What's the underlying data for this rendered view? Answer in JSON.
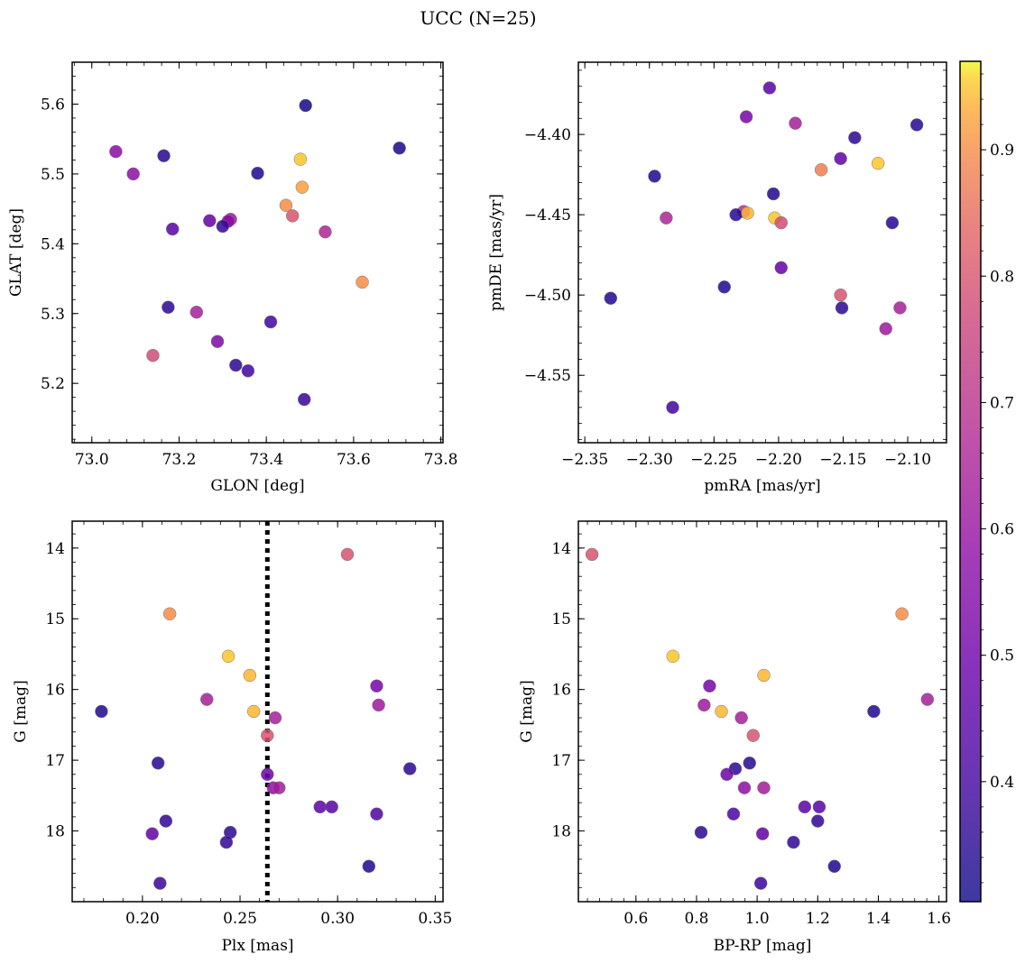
{
  "title": "UCC (N=25)",
  "colorbar": {
    "range": [
      0.305,
      0.97
    ],
    "ticks": [
      0.4,
      0.5,
      0.6,
      0.7,
      0.8,
      0.9
    ],
    "tick_labels": [
      "0.4",
      "0.5",
      "0.6",
      "0.7",
      "0.8",
      "0.9"
    ],
    "colormap": "plasma"
  },
  "chart_data": [
    {
      "type": "scatter",
      "xlabel": "GLON [deg]",
      "ylabel": "GLAT [deg]",
      "xlim": [
        72.955,
        73.805
      ],
      "ylim": [
        5.115,
        5.66
      ],
      "xticks": [
        73.0,
        73.2,
        73.4,
        73.6,
        73.8
      ],
      "xtick_labels": [
        "73.0",
        "73.2",
        "73.4",
        "73.6",
        "73.8"
      ],
      "yticks": [
        5.2,
        5.3,
        5.4,
        5.5,
        5.6
      ],
      "ytick_labels": [
        "5.2",
        "5.3",
        "5.4",
        "5.5",
        "5.6"
      ],
      "invert_y": false,
      "points": [
        {
          "x": 73.49,
          "y": 5.598,
          "c": 0.32
        },
        {
          "x": 73.705,
          "y": 5.537,
          "c": 0.33
        },
        {
          "x": 73.055,
          "y": 5.532,
          "c": 0.57
        },
        {
          "x": 73.165,
          "y": 5.526,
          "c": 0.35
        },
        {
          "x": 73.478,
          "y": 5.521,
          "c": 0.95
        },
        {
          "x": 73.38,
          "y": 5.501,
          "c": 0.34
        },
        {
          "x": 73.095,
          "y": 5.5,
          "c": 0.58
        },
        {
          "x": 73.482,
          "y": 5.481,
          "c": 0.92
        },
        {
          "x": 73.445,
          "y": 5.455,
          "c": 0.9
        },
        {
          "x": 73.46,
          "y": 5.44,
          "c": 0.8
        },
        {
          "x": 73.318,
          "y": 5.435,
          "c": 0.62
        },
        {
          "x": 73.312,
          "y": 5.432,
          "c": 0.56
        },
        {
          "x": 73.27,
          "y": 5.433,
          "c": 0.47
        },
        {
          "x": 73.3,
          "y": 5.425,
          "c": 0.37
        },
        {
          "x": 73.185,
          "y": 5.421,
          "c": 0.45
        },
        {
          "x": 73.535,
          "y": 5.417,
          "c": 0.66
        },
        {
          "x": 73.62,
          "y": 5.345,
          "c": 0.9
        },
        {
          "x": 73.175,
          "y": 5.309,
          "c": 0.36
        },
        {
          "x": 73.24,
          "y": 5.302,
          "c": 0.64
        },
        {
          "x": 73.41,
          "y": 5.288,
          "c": 0.4
        },
        {
          "x": 73.288,
          "y": 5.26,
          "c": 0.54
        },
        {
          "x": 73.14,
          "y": 5.24,
          "c": 0.78
        },
        {
          "x": 73.33,
          "y": 5.226,
          "c": 0.36
        },
        {
          "x": 73.358,
          "y": 5.218,
          "c": 0.4
        },
        {
          "x": 73.487,
          "y": 5.177,
          "c": 0.38
        }
      ]
    },
    {
      "type": "scatter",
      "xlabel": "pmRA [mas/yr]",
      "ylabel": "pmDE [mas/yr]",
      "xlim": [
        -2.355,
        -2.07
      ],
      "ylim": [
        -4.592,
        -4.355
      ],
      "xticks": [
        -2.35,
        -2.3,
        -2.25,
        -2.2,
        -2.15,
        -2.1
      ],
      "xtick_labels": [
        "−2.35",
        "−2.30",
        "−2.25",
        "−2.20",
        "−2.15",
        "−2.10"
      ],
      "yticks": [
        -4.4,
        -4.45,
        -4.5,
        -4.55
      ],
      "ytick_labels": [
        "−4.40",
        "−4.45",
        "−4.50",
        "−4.55"
      ],
      "invert_y": false,
      "points": [
        {
          "x": -2.207,
          "y": -4.371,
          "c": 0.45
        },
        {
          "x": -2.225,
          "y": -4.389,
          "c": 0.53
        },
        {
          "x": -2.187,
          "y": -4.393,
          "c": 0.64
        },
        {
          "x": -2.093,
          "y": -4.394,
          "c": 0.35
        },
        {
          "x": -2.141,
          "y": -4.402,
          "c": 0.36
        },
        {
          "x": -2.152,
          "y": -4.415,
          "c": 0.47
        },
        {
          "x": -2.123,
          "y": -4.418,
          "c": 0.95
        },
        {
          "x": -2.167,
          "y": -4.422,
          "c": 0.88
        },
        {
          "x": -2.296,
          "y": -4.426,
          "c": 0.34
        },
        {
          "x": -2.204,
          "y": -4.437,
          "c": 0.34
        },
        {
          "x": -2.227,
          "y": -4.448,
          "c": 0.68
        },
        {
          "x": -2.233,
          "y": -4.45,
          "c": 0.35
        },
        {
          "x": -2.224,
          "y": -4.449,
          "c": 0.94
        },
        {
          "x": -2.287,
          "y": -4.452,
          "c": 0.66
        },
        {
          "x": -2.203,
          "y": -4.452,
          "c": 0.95
        },
        {
          "x": -2.198,
          "y": -4.455,
          "c": 0.78
        },
        {
          "x": -2.112,
          "y": -4.455,
          "c": 0.35
        },
        {
          "x": -2.198,
          "y": -4.483,
          "c": 0.48
        },
        {
          "x": -2.242,
          "y": -4.495,
          "c": 0.34
        },
        {
          "x": -2.152,
          "y": -4.5,
          "c": 0.8
        },
        {
          "x": -2.33,
          "y": -4.502,
          "c": 0.34
        },
        {
          "x": -2.151,
          "y": -4.508,
          "c": 0.36
        },
        {
          "x": -2.106,
          "y": -4.508,
          "c": 0.64
        },
        {
          "x": -2.117,
          "y": -4.521,
          "c": 0.62
        },
        {
          "x": -2.282,
          "y": -4.57,
          "c": 0.4
        }
      ]
    },
    {
      "type": "scatter",
      "xlabel": "Plx [mas]",
      "ylabel": "G [mag]",
      "xlim": [
        0.164,
        0.354
      ],
      "ylim": [
        13.62,
        19.0
      ],
      "xticks": [
        0.2,
        0.25,
        0.3,
        0.35
      ],
      "xtick_labels": [
        "0.20",
        "0.25",
        "0.30",
        "0.35"
      ],
      "yticks": [
        14,
        15,
        16,
        17,
        18
      ],
      "ytick_labels": [
        "14",
        "15",
        "16",
        "17",
        "18"
      ],
      "invert_y": true,
      "vline": 0.264,
      "points": [
        {
          "x": 0.305,
          "y": 14.09,
          "c": 0.8
        },
        {
          "x": 0.214,
          "y": 14.93,
          "c": 0.9
        },
        {
          "x": 0.244,
          "y": 15.53,
          "c": 0.95
        },
        {
          "x": 0.255,
          "y": 15.8,
          "c": 0.94
        },
        {
          "x": 0.32,
          "y": 15.95,
          "c": 0.52
        },
        {
          "x": 0.233,
          "y": 16.14,
          "c": 0.64
        },
        {
          "x": 0.321,
          "y": 16.22,
          "c": 0.62
        },
        {
          "x": 0.257,
          "y": 16.31,
          "c": 0.94
        },
        {
          "x": 0.179,
          "y": 16.31,
          "c": 0.34
        },
        {
          "x": 0.268,
          "y": 16.4,
          "c": 0.64
        },
        {
          "x": 0.264,
          "y": 16.65,
          "c": 0.8
        },
        {
          "x": 0.208,
          "y": 17.04,
          "c": 0.35
        },
        {
          "x": 0.337,
          "y": 17.12,
          "c": 0.36
        },
        {
          "x": 0.264,
          "y": 17.2,
          "c": 0.5
        },
        {
          "x": 0.267,
          "y": 17.39,
          "c": 0.58
        },
        {
          "x": 0.27,
          "y": 17.39,
          "c": 0.63
        },
        {
          "x": 0.291,
          "y": 17.66,
          "c": 0.46
        },
        {
          "x": 0.297,
          "y": 17.66,
          "c": 0.45
        },
        {
          "x": 0.32,
          "y": 17.76,
          "c": 0.43
        },
        {
          "x": 0.212,
          "y": 17.86,
          "c": 0.37
        },
        {
          "x": 0.245,
          "y": 18.02,
          "c": 0.36
        },
        {
          "x": 0.205,
          "y": 18.04,
          "c": 0.47
        },
        {
          "x": 0.243,
          "y": 18.16,
          "c": 0.37
        },
        {
          "x": 0.316,
          "y": 18.5,
          "c": 0.34
        },
        {
          "x": 0.209,
          "y": 18.74,
          "c": 0.39
        }
      ]
    },
    {
      "type": "scatter",
      "xlabel": "BP-RP [mag]",
      "ylabel": "G [mag]",
      "xlim": [
        0.41,
        1.625
      ],
      "ylim": [
        13.62,
        19.0
      ],
      "xticks": [
        0.6,
        0.8,
        1.0,
        1.2,
        1.4,
        1.6
      ],
      "xtick_labels": [
        "0.6",
        "0.8",
        "1.0",
        "1.2",
        "1.4",
        "1.6"
      ],
      "yticks": [
        14,
        15,
        16,
        17,
        18
      ],
      "ytick_labels": [
        "14",
        "15",
        "16",
        "17",
        "18"
      ],
      "invert_y": true,
      "points": [
        {
          "x": 0.455,
          "y": 14.09,
          "c": 0.8
        },
        {
          "x": 1.478,
          "y": 14.93,
          "c": 0.9
        },
        {
          "x": 0.722,
          "y": 15.53,
          "c": 0.95
        },
        {
          "x": 1.022,
          "y": 15.8,
          "c": 0.94
        },
        {
          "x": 0.843,
          "y": 15.95,
          "c": 0.52
        },
        {
          "x": 1.562,
          "y": 16.14,
          "c": 0.64
        },
        {
          "x": 0.825,
          "y": 16.22,
          "c": 0.62
        },
        {
          "x": 0.882,
          "y": 16.31,
          "c": 0.94
        },
        {
          "x": 1.385,
          "y": 16.31,
          "c": 0.34
        },
        {
          "x": 0.948,
          "y": 16.4,
          "c": 0.64
        },
        {
          "x": 0.987,
          "y": 16.65,
          "c": 0.8
        },
        {
          "x": 0.975,
          "y": 17.04,
          "c": 0.35
        },
        {
          "x": 0.928,
          "y": 17.12,
          "c": 0.36
        },
        {
          "x": 0.9,
          "y": 17.2,
          "c": 0.5
        },
        {
          "x": 0.958,
          "y": 17.39,
          "c": 0.58
        },
        {
          "x": 1.022,
          "y": 17.39,
          "c": 0.63
        },
        {
          "x": 1.157,
          "y": 17.66,
          "c": 0.46
        },
        {
          "x": 1.205,
          "y": 17.66,
          "c": 0.45
        },
        {
          "x": 0.922,
          "y": 17.76,
          "c": 0.43
        },
        {
          "x": 1.2,
          "y": 17.86,
          "c": 0.37
        },
        {
          "x": 0.815,
          "y": 18.02,
          "c": 0.36
        },
        {
          "x": 1.018,
          "y": 18.04,
          "c": 0.47
        },
        {
          "x": 1.12,
          "y": 18.16,
          "c": 0.37
        },
        {
          "x": 1.255,
          "y": 18.5,
          "c": 0.34
        },
        {
          "x": 1.012,
          "y": 18.74,
          "c": 0.39
        }
      ]
    }
  ]
}
